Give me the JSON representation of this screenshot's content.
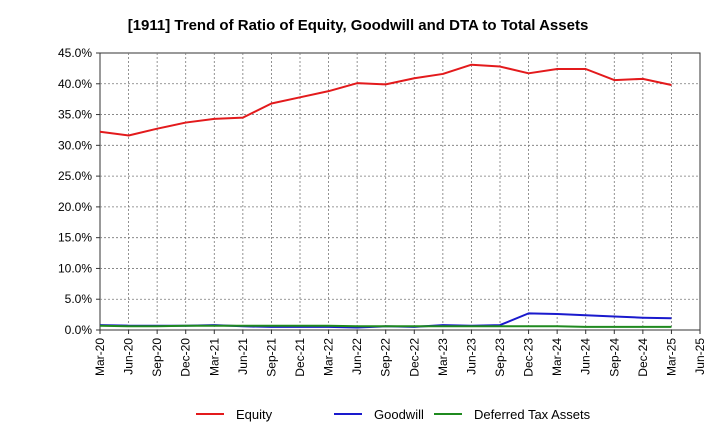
{
  "chart_data": {
    "type": "line",
    "title": "[1911]  Trend of Ratio of Equity, Goodwill and DTA to Total Assets",
    "xlabel": "",
    "ylabel": "",
    "ylim": [
      0,
      45
    ],
    "y_ticks": [
      "0.0%",
      "5.0%",
      "10.0%",
      "15.0%",
      "20.0%",
      "25.0%",
      "30.0%",
      "35.0%",
      "40.0%",
      "45.0%"
    ],
    "categories": [
      "Mar-20",
      "Jun-20",
      "Sep-20",
      "Dec-20",
      "Mar-21",
      "Jun-21",
      "Sep-21",
      "Dec-21",
      "Mar-22",
      "Jun-22",
      "Sep-22",
      "Dec-22",
      "Mar-23",
      "Jun-23",
      "Sep-23",
      "Dec-23",
      "Mar-24",
      "Jun-24",
      "Sep-24",
      "Dec-24",
      "Mar-25",
      "Jun-25"
    ],
    "grid": true,
    "legend_position": "bottom",
    "series": [
      {
        "name": "Equity",
        "color": "#e31a1c",
        "values": [
          32.2,
          31.6,
          32.7,
          33.7,
          34.3,
          34.5,
          36.8,
          37.8,
          38.8,
          40.1,
          39.9,
          40.9,
          41.6,
          43.1,
          42.8,
          41.7,
          42.4,
          42.4,
          40.6,
          40.8,
          39.8,
          null
        ]
      },
      {
        "name": "Goodwill",
        "color": "#1a1acd",
        "values": [
          0.8,
          0.7,
          0.7,
          0.7,
          0.8,
          0.6,
          0.5,
          0.5,
          0.5,
          0.4,
          0.6,
          0.5,
          0.8,
          0.7,
          0.8,
          2.7,
          2.6,
          2.4,
          2.2,
          2.0,
          1.9,
          null
        ]
      },
      {
        "name": "Deferred Tax Assets",
        "color": "#1f8a1f",
        "values": [
          0.7,
          0.6,
          0.6,
          0.7,
          0.7,
          0.7,
          0.7,
          0.7,
          0.7,
          0.6,
          0.6,
          0.6,
          0.6,
          0.6,
          0.6,
          0.6,
          0.6,
          0.5,
          0.5,
          0.5,
          0.5,
          null
        ]
      }
    ]
  }
}
